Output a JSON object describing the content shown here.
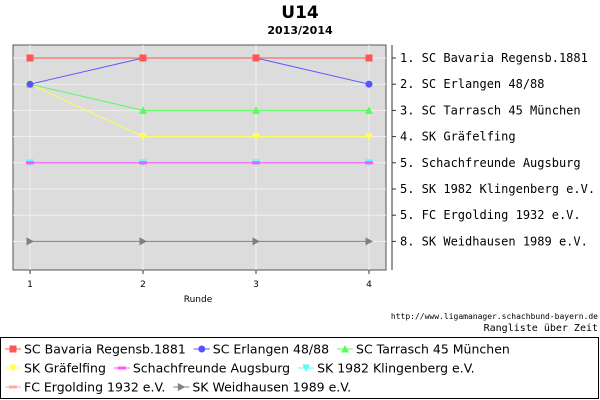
{
  "chart_data": {
    "type": "line",
    "title": "U14",
    "subtitle": "2013/2014",
    "xlabel": "Runde",
    "ylabel": "",
    "x": [
      1,
      2,
      3,
      4
    ],
    "ylim": [
      1,
      8
    ],
    "y_inverted": true,
    "grid": true,
    "legend_position": "bottom",
    "series": [
      {
        "name": "SC Bavaria Regensb.1881",
        "values": [
          1,
          1,
          1,
          1
        ],
        "color": "#ff5555",
        "marker": "square"
      },
      {
        "name": "SC Erlangen 48/88",
        "values": [
          2,
          1,
          1,
          2
        ],
        "color": "#5555ff",
        "marker": "circle"
      },
      {
        "name": "SC Tarrasch 45 München",
        "values": [
          2,
          3,
          3,
          3
        ],
        "color": "#55ff55",
        "marker": "triangle-up"
      },
      {
        "name": "SK Gräfelfing",
        "values": [
          2,
          4,
          4,
          4
        ],
        "color": "#ffff55",
        "marker": "triangle-down"
      },
      {
        "name": "Schachfreunde Augsburg",
        "values": [
          5,
          5,
          5,
          5
        ],
        "color": "#ff55ff",
        "marker": "dash"
      },
      {
        "name": "SK 1982 Klingenberg e.V.",
        "values": [
          5,
          5,
          5,
          5
        ],
        "color": "#55ffff",
        "marker": "triangle-down"
      },
      {
        "name": "FC Ergolding 1932 e.V.",
        "values": [
          5,
          5,
          5,
          5
        ],
        "color": "#ffaaaa",
        "marker": "dash"
      },
      {
        "name": "SK Weidhausen 1989 e.V.",
        "values": [
          8,
          8,
          8,
          8
        ],
        "color": "#808080",
        "marker": "triangle-right"
      }
    ],
    "final_ranking": [
      "1. SC Bavaria Regensb.1881",
      "2. SC Erlangen 48/88",
      "3. SC Tarrasch 45 München",
      "4. SK Gräfelfing",
      "5. Schachfreunde Augsburg",
      "5. SK 1982 Klingenberg e.V.",
      "5. FC Ergolding 1932 e.V.",
      "8. SK Weidhausen 1989 e.V."
    ],
    "credit_url": "http://www.ligamanager.schachbund-bayern.de",
    "credit_text": "Rangliste über Zeit"
  },
  "colors": {
    "plot_background": "#dcdcdc",
    "grid": "#f0f0f0"
  }
}
